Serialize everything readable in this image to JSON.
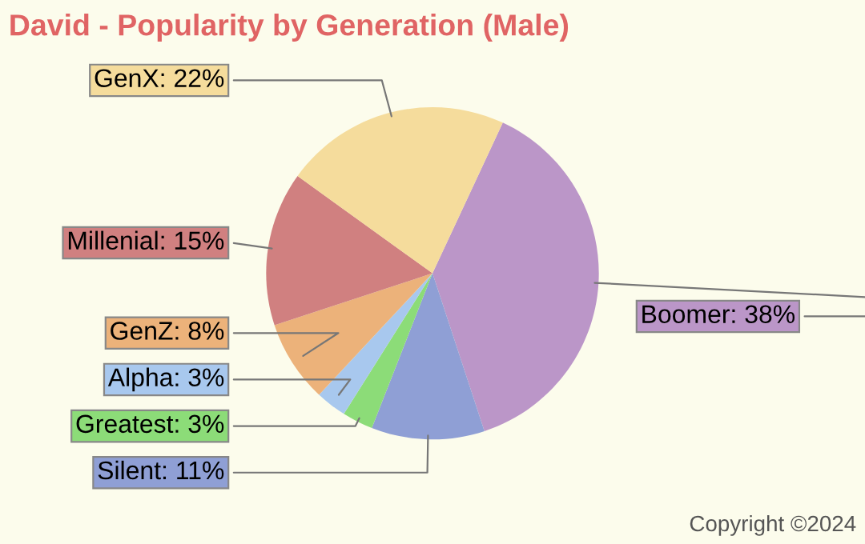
{
  "chart_data": {
    "type": "pie",
    "title": "David - Popularity by Generation (Male)",
    "categories": [
      "Boomer",
      "Silent",
      "Greatest",
      "Alpha",
      "GenZ",
      "Millenial",
      "GenX"
    ],
    "values": [
      38,
      11,
      3,
      3,
      8,
      15,
      22
    ],
    "value_labels": [
      "38%",
      "11%",
      "3%",
      "3%",
      "8%",
      "15%",
      "22%"
    ],
    "colors": [
      "#bb96c8",
      "#8f9fd5",
      "#8cdc78",
      "#a8c8ee",
      "#ecb27a",
      "#d08080",
      "#f5dc9c"
    ],
    "annotations": [
      "Copyright ©2024"
    ]
  }
}
